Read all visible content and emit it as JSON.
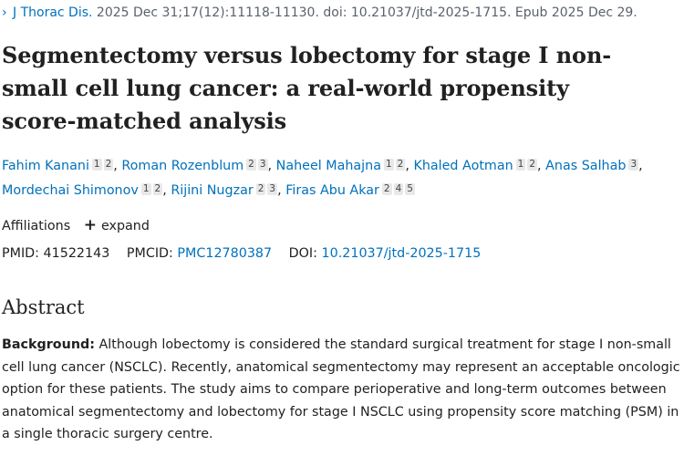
{
  "citation": {
    "journal": "J Thorac Dis.",
    "details": " 2025 Dec 31;17(12):11118-11130. doi: 10.21037/jtd-2025-1715. Epub 2025 Dec 29."
  },
  "title": "Segmentectomy versus lobectomy for stage I non-small cell lung cancer: a real-world propensity score-matched analysis",
  "authors": [
    {
      "name": "Fahim Kanani",
      "affs": [
        "1",
        "2"
      ]
    },
    {
      "name": "Roman Rozenblum",
      "affs": [
        "2",
        "3"
      ]
    },
    {
      "name": "Naheel Mahajna",
      "affs": [
        "1",
        "2"
      ]
    },
    {
      "name": "Khaled Aotman",
      "affs": [
        "1",
        "2"
      ]
    },
    {
      "name": "Anas Salhab",
      "affs": [
        "3"
      ]
    },
    {
      "name": "Mordechai Shimonov",
      "affs": [
        "1",
        "2"
      ]
    },
    {
      "name": "Rijini Nugzar",
      "affs": [
        "2",
        "3"
      ]
    },
    {
      "name": "Firas Abu Akar",
      "affs": [
        "2",
        "4",
        "5"
      ]
    }
  ],
  "affiliations": {
    "label": "Affiliations",
    "expand": "expand"
  },
  "ids": {
    "pmid_label": "PMID:",
    "pmid": "41522143",
    "pmcid_label": "PMCID:",
    "pmcid": "PMC12780387",
    "doi_label": "DOI:",
    "doi": "10.21037/jtd-2025-1715"
  },
  "abstract": {
    "heading": "Abstract",
    "label": "Background:",
    "text": " Although lobectomy is considered the standard surgical treatment for stage I non-small cell lung cancer (NSCLC). Recently, anatomical segmentectomy may represent an acceptable oncologic option for these patients. The study aims to compare perioperative and long-term outcomes between anatomical segmentectomy and lobectomy for stage I NSCLC using propensity score matching (PSM) in a single thoracic surgery centre."
  },
  "colors": {
    "link": "#0071bc",
    "text": "#212121",
    "muted": "#5b616b"
  },
  "icons": {
    "journal_chevron": "chevron-right-icon",
    "expand": "plus-icon"
  }
}
